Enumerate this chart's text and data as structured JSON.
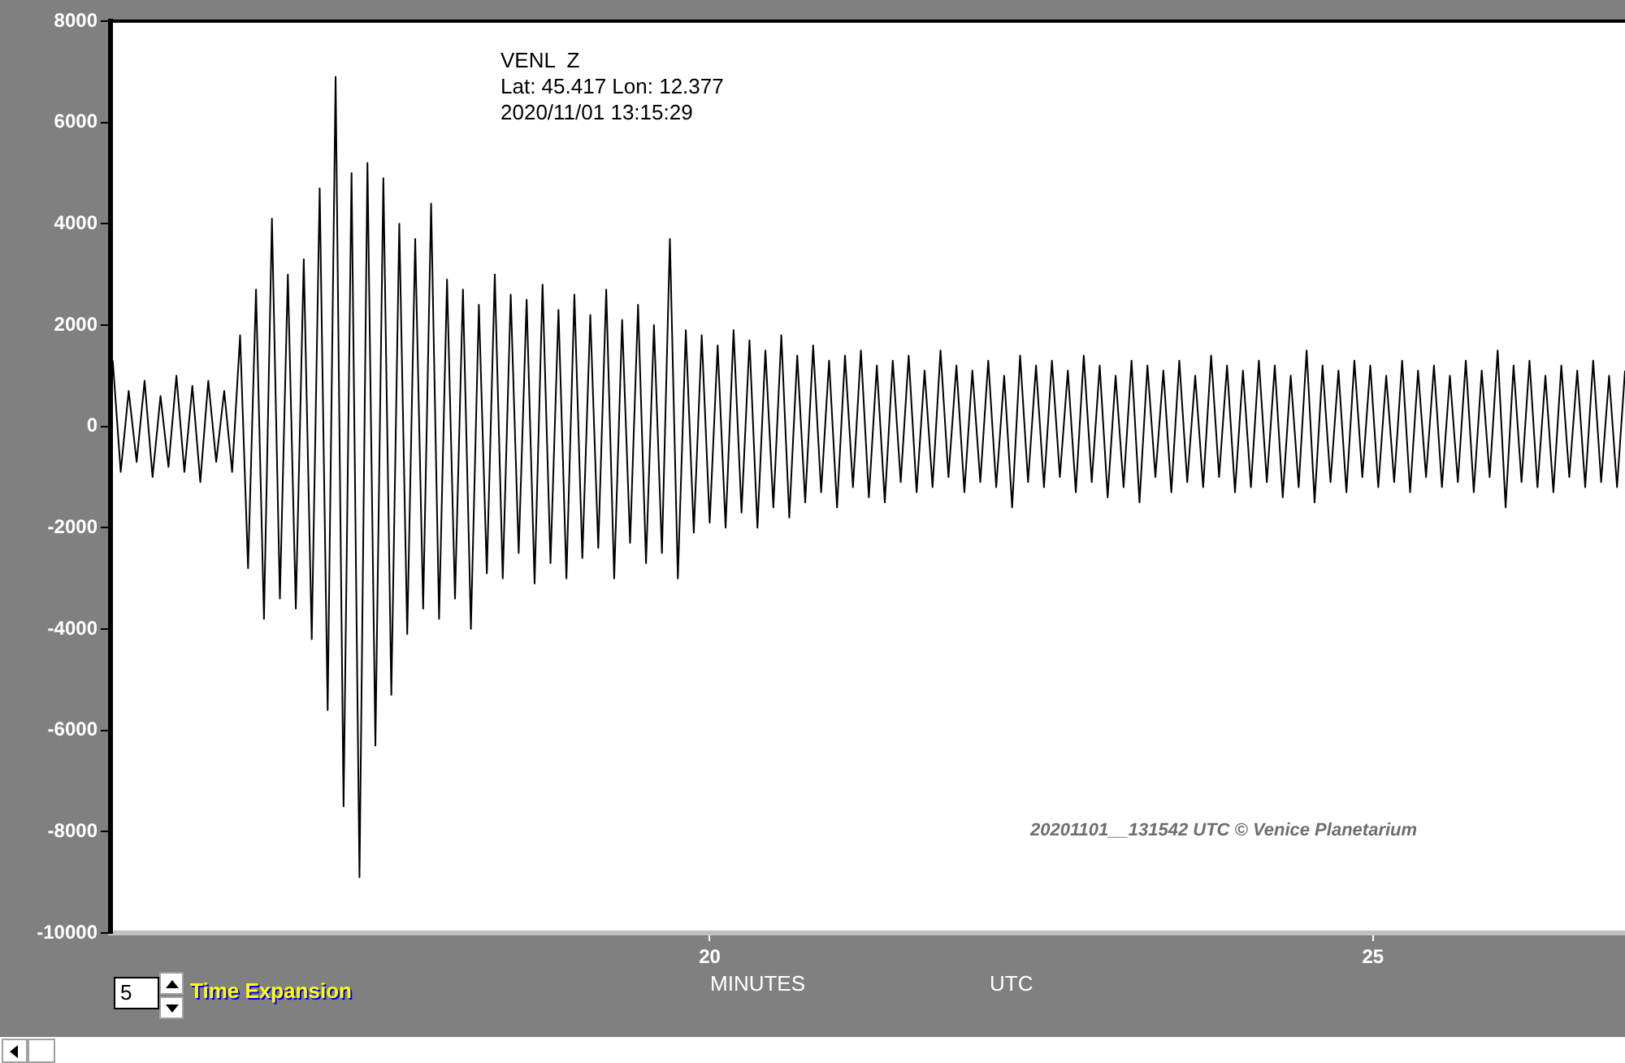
{
  "chart_data": {
    "type": "line",
    "title": "VENL  Z",
    "subtitle": "Lat: 45.417 Lon: 12.377",
    "xlabel": "MINUTES",
    "annotations": [
      "2020/11/01 13:15:29",
      "20201101__131542 UTC © Venice Planetarium",
      "UTC",
      "5",
      "Time Expansion"
    ],
    "x": [
      15.5,
      15.56,
      15.62,
      15.68,
      15.74,
      15.8,
      15.86,
      15.92,
      15.98,
      16.04,
      16.1,
      16.16,
      16.22,
      16.28,
      16.34,
      16.4,
      16.46,
      16.52,
      16.58,
      16.64,
      16.7,
      16.76,
      16.82,
      16.88,
      16.94,
      17,
      17.06,
      17.12,
      17.18,
      17.24,
      17.3,
      17.36,
      17.42,
      17.48,
      17.54,
      17.6,
      17.66,
      17.72,
      17.78,
      17.84,
      17.9,
      17.96,
      18.02,
      18.08,
      18.14,
      18.2,
      18.26,
      18.32,
      18.38,
      18.44,
      18.5,
      18.56,
      18.62,
      18.68,
      18.74,
      18.8,
      18.86,
      18.92,
      18.98,
      19.04,
      19.1,
      19.16,
      19.22,
      19.28,
      19.34,
      19.4,
      19.46,
      19.52,
      19.58,
      19.64,
      19.7,
      19.76,
      19.82,
      19.88,
      19.94,
      20,
      20.06,
      20.12,
      20.18,
      20.24,
      20.3,
      20.36,
      20.42,
      20.48,
      20.54,
      20.6,
      20.66,
      20.72,
      20.78,
      20.84,
      20.9,
      20.96,
      21.02,
      21.08,
      21.14,
      21.2,
      21.26,
      21.32,
      21.38,
      21.44,
      21.5,
      21.56,
      21.62,
      21.68,
      21.74,
      21.8,
      21.86,
      21.92,
      21.98,
      22.04,
      22.1,
      22.16,
      22.22,
      22.28,
      22.34,
      22.4,
      22.46,
      22.52,
      22.58,
      22.64,
      22.7,
      22.76,
      22.82,
      22.88,
      22.94,
      23,
      23.06,
      23.12,
      23.18,
      23.24,
      23.3,
      23.36,
      23.42,
      23.48,
      23.54,
      23.6,
      23.66,
      23.72,
      23.78,
      23.84,
      23.9,
      23.96,
      24.02,
      24.08,
      24.14,
      24.2,
      24.26,
      24.32,
      24.38,
      24.44,
      24.5,
      24.56,
      24.62,
      24.68,
      24.74,
      24.8,
      24.86,
      24.92,
      24.98,
      25.04,
      25.1,
      25.16,
      25.22,
      25.28,
      25.34,
      25.4,
      25.46,
      25.52,
      25.58,
      25.64,
      25.7,
      25.76,
      25.82,
      25.88,
      25.94,
      26,
      26.06,
      26.12,
      26.18,
      26.24,
      26.3,
      26.36,
      26.42,
      26.48,
      26.54,
      26.6,
      26.66,
      26.72,
      26.78,
      26.84,
      26.9
    ],
    "series": [
      {
        "color": "#000000",
        "values": [
          1300,
          -900,
          700,
          -700,
          900,
          -1000,
          600,
          -800,
          1000,
          -900,
          800,
          -1100,
          900,
          -700,
          700,
          -900,
          1800,
          -2800,
          2700,
          -3800,
          4100,
          -3400,
          3000,
          -3600,
          3300,
          -4200,
          4700,
          -5600,
          6900,
          -7500,
          5000,
          -8900,
          5200,
          -6300,
          4900,
          -5300,
          4000,
          -4100,
          3700,
          -3600,
          4400,
          -3800,
          2900,
          -3400,
          2700,
          -4000,
          2400,
          -2900,
          3000,
          -3000,
          2600,
          -2500,
          2500,
          -3100,
          2800,
          -2700,
          2300,
          -3000,
          2600,
          -2600,
          2200,
          -2400,
          2700,
          -3000,
          2100,
          -2300,
          2400,
          -2700,
          2000,
          -2500,
          3700,
          -3000,
          1900,
          -2100,
          1800,
          -1900,
          1600,
          -2000,
          1900,
          -1700,
          1700,
          -2000,
          1500,
          -1600,
          1800,
          -1800,
          1400,
          -1500,
          1600,
          -1300,
          1300,
          -1600,
          1400,
          -1200,
          1500,
          -1400,
          1200,
          -1500,
          1300,
          -1100,
          1400,
          -1300,
          1100,
          -1200,
          1500,
          -1000,
          1200,
          -1300,
          1100,
          -1100,
          1300,
          -1200,
          1000,
          -1600,
          1400,
          -1100,
          1200,
          -1200,
          1300,
          -1000,
          1100,
          -1300,
          1400,
          -1100,
          1200,
          -1400,
          1000,
          -1200,
          1300,
          -1500,
          1200,
          -1000,
          1100,
          -1300,
          1300,
          -1100,
          1000,
          -1200,
          1400,
          -1000,
          1200,
          -1300,
          1100,
          -1200,
          1300,
          -1100,
          1200,
          -1400,
          1000,
          -1200,
          1500,
          -1500,
          1200,
          -1100,
          1100,
          -1300,
          1300,
          -1000,
          1200,
          -1200,
          1000,
          -1100,
          1300,
          -1300,
          1100,
          -1000,
          1200,
          -1200,
          1000,
          -1100,
          1300,
          -1300,
          1100,
          -1000,
          1500,
          -1600,
          1200,
          -1100,
          1300,
          -1200,
          1000,
          -1300,
          1200,
          -1000,
          1100,
          -1200,
          1300,
          -1100,
          1000,
          -1200,
          1100
        ]
      }
    ],
    "xlim": [
      15.483,
      26.9
    ],
    "xticks": [
      20,
      25
    ],
    "ylim": [
      -10000,
      8000
    ],
    "yticks": [
      -10000,
      -8000,
      -6000,
      -4000,
      -2000,
      0,
      2000,
      4000,
      6000,
      8000
    ],
    "marker": "none",
    "line_style": "solid"
  }
}
